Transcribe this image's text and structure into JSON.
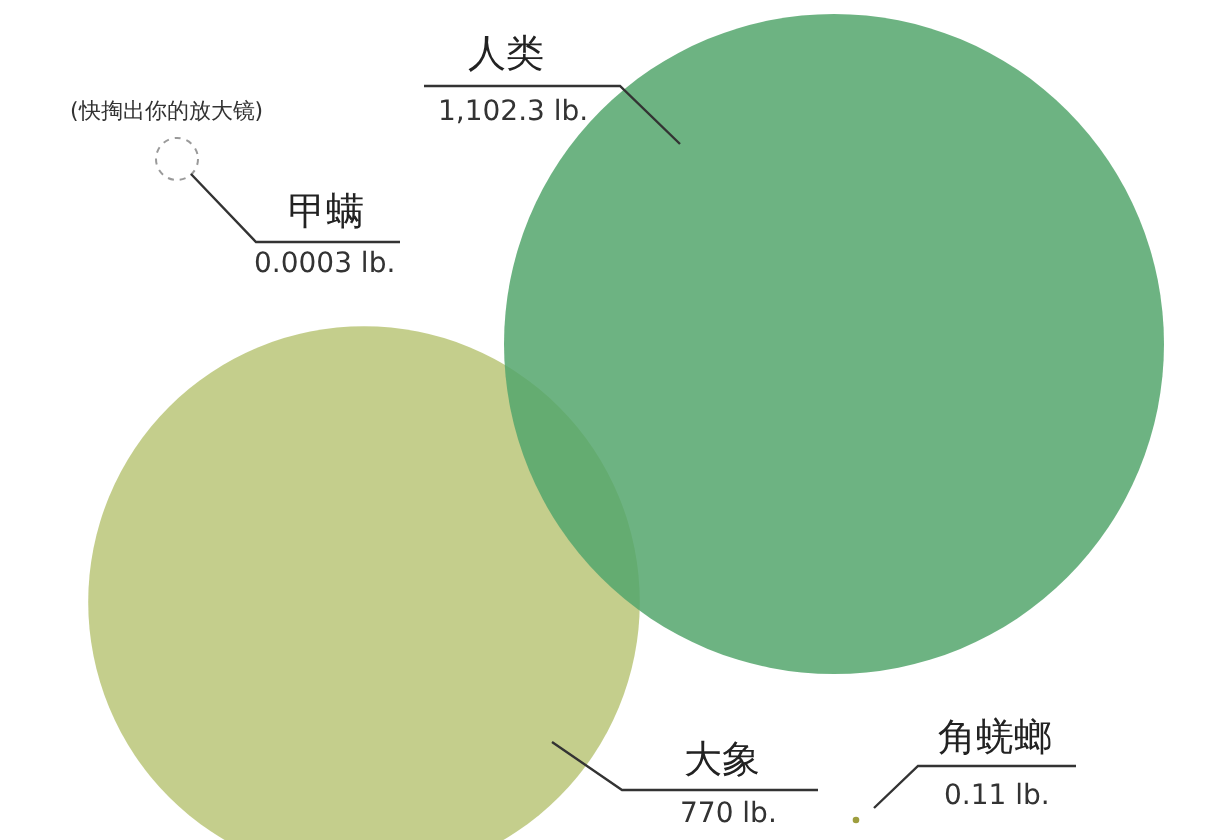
{
  "chart_data": {
    "type": "other",
    "categories": [
      "人类",
      "甲螨",
      "大象",
      "角蜣螂"
    ],
    "values": [
      1102.3,
      0.0003,
      770,
      0.11
    ],
    "value_labels": [
      "1,102.3 lb.",
      "0.0003 lb.",
      "770 lb.",
      "0.11 lb."
    ],
    "colors": [
      "#6db382",
      "#9a9a9a",
      "#c4ce8c",
      "#9e9e3e"
    ],
    "annotations": [
      "(快掏出你的放大镜)"
    ]
  }
}
